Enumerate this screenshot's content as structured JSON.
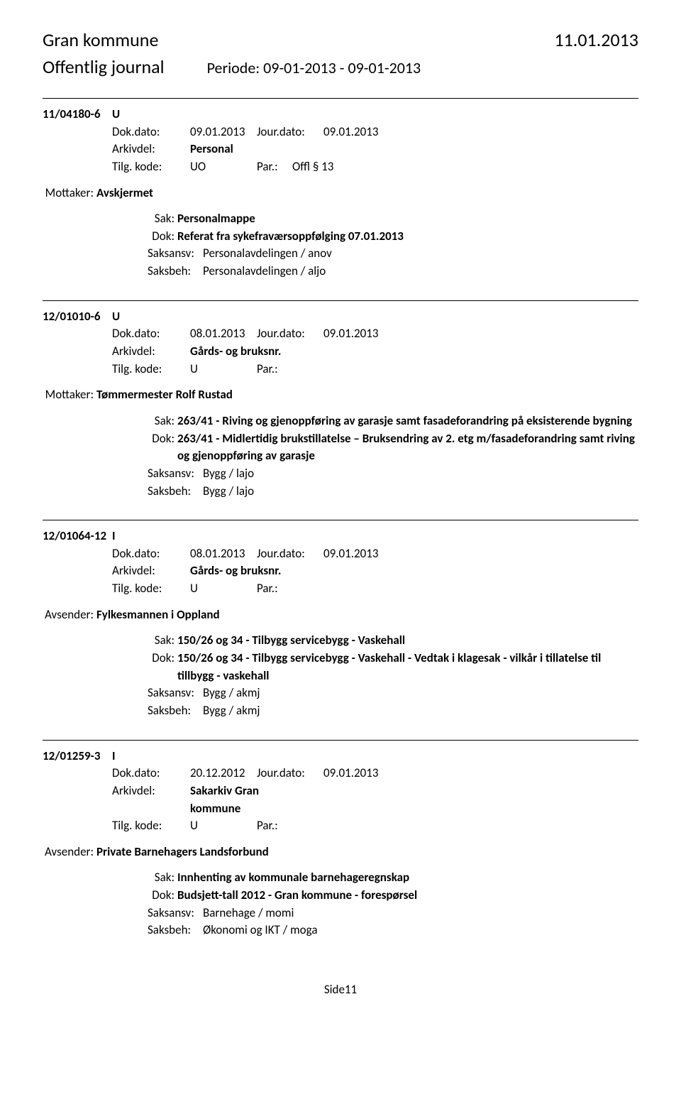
{
  "header": {
    "left": "Gran kommune",
    "right": "11.01.2013",
    "sub_left": "Offentlig journal",
    "sub_right": "Periode: 09-01-2013 - 09-01-2013"
  },
  "entries": [
    {
      "case_no": "11/04180-6",
      "direction": "U",
      "dokdato_label": "Dok.dato:",
      "dokdato": "09.01.2013",
      "jourdato_label": "Jour.dato:",
      "jourdato": "09.01.2013",
      "arkivdel_label": "Arkivdel:",
      "arkivdel": "Personal",
      "tilg_label": "Tilg. kode:",
      "tilg": "UO",
      "par_label": "Par.:",
      "par": "Offl § 13",
      "party_label": "Mottaker:",
      "party": "Avskjermet",
      "sak_label": "Sak:",
      "sak": "Personalmappe",
      "dok_label": "Dok:",
      "dok": "Referat fra sykefraværsoppfølging 07.01.2013",
      "saksansv_label": "Saksansv:",
      "saksansv": "Personalavdelingen / anov",
      "saksbeh_label": "Saksbeh:",
      "saksbeh": "Personalavdelingen / aljo"
    },
    {
      "case_no": "12/01010-6",
      "direction": "U",
      "dokdato_label": "Dok.dato:",
      "dokdato": "08.01.2013",
      "jourdato_label": "Jour.dato:",
      "jourdato": "09.01.2013",
      "arkivdel_label": "Arkivdel:",
      "arkivdel": "Gårds- og bruksnr.",
      "tilg_label": "Tilg. kode:",
      "tilg": "U",
      "par_label": "Par.:",
      "par": "",
      "party_label": "Mottaker:",
      "party": "Tømmermester Rolf Rustad",
      "sak_label": "Sak:",
      "sak": "263/41 - Riving og gjenoppføring av garasje samt fasadeforandring på eksisterende bygning",
      "dok_label": "Dok:",
      "dok": "263/41 - Midlertidig brukstillatelse – Bruksendring av 2. etg m/fasadeforandring samt riving og gjenoppføring av garasje",
      "saksansv_label": "Saksansv:",
      "saksansv": "Bygg / lajo",
      "saksbeh_label": "Saksbeh:",
      "saksbeh": "Bygg / lajo"
    },
    {
      "case_no": "12/01064-12",
      "direction": "I",
      "dokdato_label": "Dok.dato:",
      "dokdato": "08.01.2013",
      "jourdato_label": "Jour.dato:",
      "jourdato": "09.01.2013",
      "arkivdel_label": "Arkivdel:",
      "arkivdel": "Gårds- og bruksnr.",
      "tilg_label": "Tilg. kode:",
      "tilg": "U",
      "par_label": "Par.:",
      "par": "",
      "party_label": "Avsender:",
      "party": "Fylkesmannen i Oppland",
      "sak_label": "Sak:",
      "sak": "150/26 og 34 - Tilbygg servicebygg - Vaskehall",
      "dok_label": "Dok:",
      "dok": "150/26 og 34 - Tilbygg servicebygg - Vaskehall - Vedtak i klagesak - vilkår i tillatelse til tillbygg - vaskehall",
      "saksansv_label": "Saksansv:",
      "saksansv": "Bygg / akmj",
      "saksbeh_label": "Saksbeh:",
      "saksbeh": "Bygg / akmj"
    },
    {
      "case_no": "12/01259-3",
      "direction": "I",
      "dokdato_label": "Dok.dato:",
      "dokdato": "20.12.2012",
      "jourdato_label": "Jour.dato:",
      "jourdato": "09.01.2013",
      "arkivdel_label": "Arkivdel:",
      "arkivdel": "Sakarkiv Gran kommune",
      "tilg_label": "Tilg. kode:",
      "tilg": "U",
      "par_label": "Par.:",
      "par": "",
      "party_label": "Avsender:",
      "party": "Private Barnehagers Landsforbund",
      "sak_label": "Sak:",
      "sak": "Innhenting av kommunale barnehageregnskap",
      "dok_label": "Dok:",
      "dok": "Budsjett-tall 2012 - Gran kommune - forespørsel",
      "saksansv_label": "Saksansv:",
      "saksansv": "Barnehage / momi",
      "saksbeh_label": "Saksbeh:",
      "saksbeh": "Økonomi og IKT / moga"
    }
  ],
  "footer": "Side11"
}
